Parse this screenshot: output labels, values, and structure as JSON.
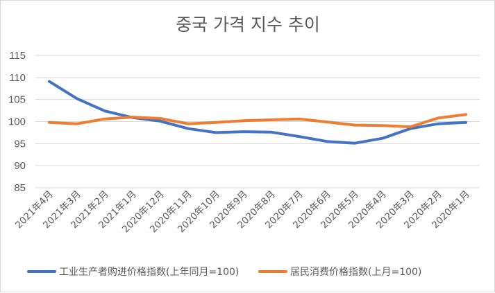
{
  "chart_data": {
    "type": "line",
    "title": "중국 가격 지수 추이",
    "xlabel": "",
    "ylabel": "",
    "categories": [
      "2021年4月",
      "2021年3月",
      "2021年2月",
      "2021年1月",
      "2020年12月",
      "2020年11月",
      "2020年10月",
      "2020年9月",
      "2020年8月",
      "2020年7月",
      "2020年6月",
      "2020年5月",
      "2020年4月",
      "2020年3月",
      "2020年2月",
      "2020年1月"
    ],
    "ylim": [
      85,
      115
    ],
    "yticks": [
      "85",
      "90",
      "95",
      "100",
      "105",
      "110",
      "115"
    ],
    "grid": true,
    "legend_position": "bottom",
    "series": [
      {
        "name": "工业生产者购进价格指数(上年同月=100)",
        "color": "#4472C4",
        "values": [
          109.1,
          105.2,
          102.4,
          100.9,
          100.1,
          98.4,
          97.5,
          97.7,
          97.6,
          96.6,
          95.5,
          95.1,
          96.2,
          98.4,
          99.5,
          99.8
        ]
      },
      {
        "name": "居民消费价格指数(上月=100)",
        "color": "#ED7D31",
        "values": [
          99.8,
          99.5,
          100.6,
          101.0,
          100.7,
          99.5,
          99.8,
          100.2,
          100.4,
          100.6,
          99.9,
          99.2,
          99.1,
          98.8,
          100.8,
          101.6
        ]
      }
    ]
  }
}
